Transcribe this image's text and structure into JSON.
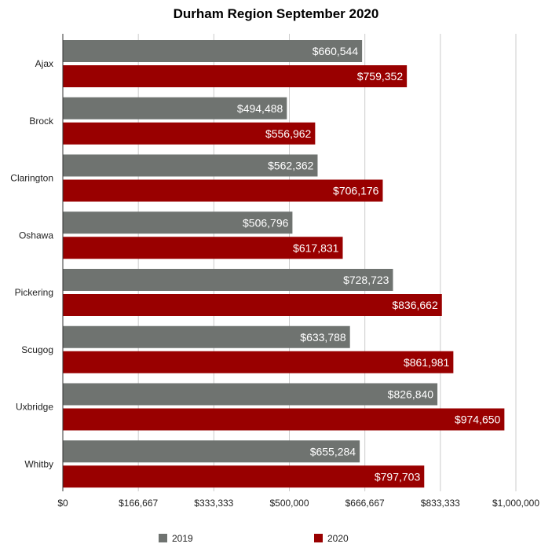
{
  "chart_data": {
    "type": "bar",
    "orientation": "horizontal",
    "title": "Durham Region September 2020",
    "categories": [
      "Ajax",
      "Brock",
      "Clarington",
      "Oshawa",
      "Pickering",
      "Scugog",
      "Uxbridge",
      "Whitby"
    ],
    "series": [
      {
        "name": "2019",
        "color": "#6f7370",
        "values": [
          660544,
          494488,
          562362,
          506796,
          728723,
          633788,
          826840,
          655284
        ],
        "labels": [
          "$660,544",
          "$494,488",
          "$562,362",
          "$506,796",
          "$728,723",
          "$633,788",
          "$826,840",
          "$655,284"
        ]
      },
      {
        "name": "2020",
        "color": "#990000",
        "values": [
          759352,
          556962,
          706176,
          617831,
          836662,
          861981,
          974650,
          797703
        ],
        "labels": [
          "$759,352",
          "$556,962",
          "$706,176",
          "$617,831",
          "$836,662",
          "$861,981",
          "$974,650",
          "$797,703"
        ]
      }
    ],
    "xlim": [
      0,
      1000000
    ],
    "xticks": [
      0,
      166667,
      333333,
      500000,
      666667,
      833333,
      1000000
    ],
    "xtick_labels": [
      "$0",
      "$166,667",
      "$333,333",
      "$500,000",
      "$666,667",
      "$833,333",
      "$1,000,000"
    ],
    "grid": "vertical",
    "legend_position": "bottom"
  }
}
